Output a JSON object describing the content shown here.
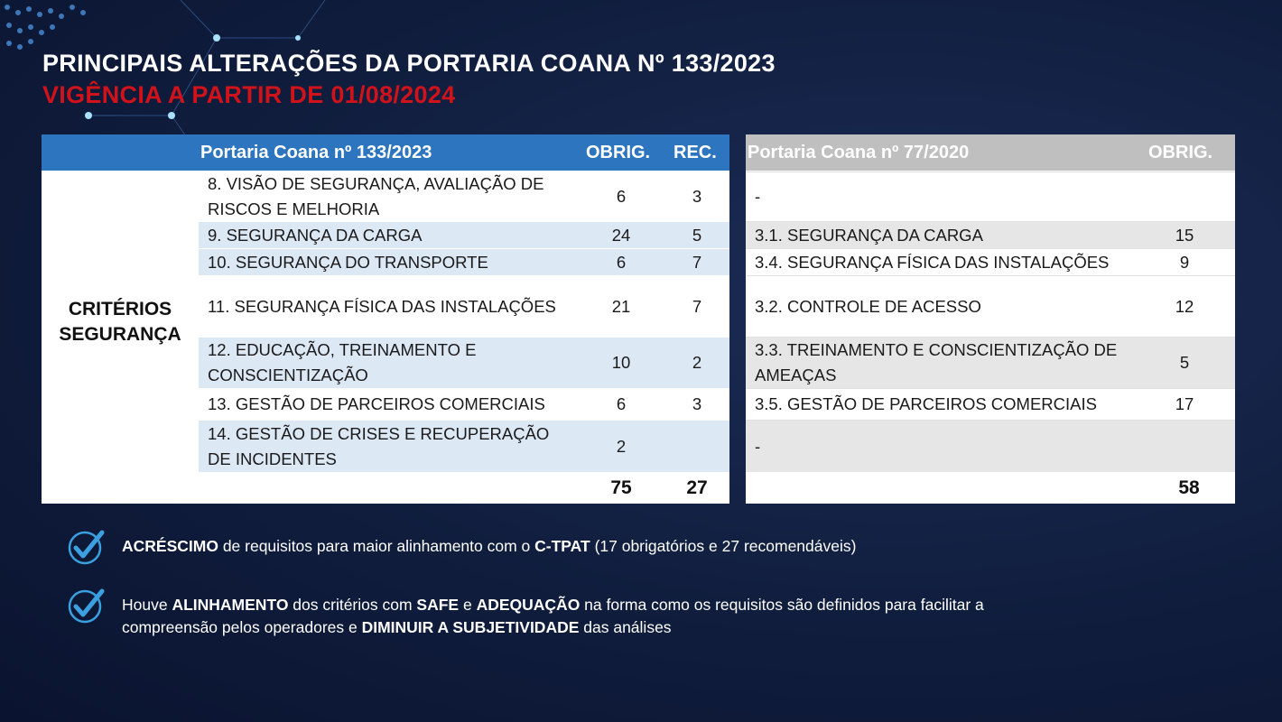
{
  "title": "PRINCIPAIS ALTERAÇÕES DA PORTARIA COANA Nº 133/2023",
  "subtitle": "VIGÊNCIA A PARTIR DE 01/08/2024",
  "colors": {
    "accent_blue": "#2e75c0",
    "header_gray": "#bfbfbf",
    "title_red": "#d0121b",
    "row_blue": "#dde8f5",
    "row_gray": "#e6e6e6"
  },
  "new_table": {
    "header": {
      "title": "Portaria Coana nº 133/2023",
      "col1": "OBRIG.",
      "col2": "REC."
    },
    "category": "CRITÉRIOS SEGURANÇA",
    "rows": [
      {
        "label": "8. VISÃO DE SEGURANÇA, AVALIAÇÃO DE RISCOS E MELHORIA",
        "obrig": "6",
        "rec": "3"
      },
      {
        "label": "9. SEGURANÇA DA CARGA",
        "obrig": "24",
        "rec": "5"
      },
      {
        "label": "10. SEGURANÇA DO TRANSPORTE",
        "obrig": "6",
        "rec": "7"
      },
      {
        "label": "11. SEGURANÇA FÍSICA DAS INSTALAÇÕES",
        "obrig": "21",
        "rec": "7"
      },
      {
        "label": "12. EDUCAÇÃO, TREINAMENTO E CONSCIENTIZAÇÃO",
        "obrig": "10",
        "rec": "2"
      },
      {
        "label": "13. GESTÃO DE PARCEIROS COMERCIAIS",
        "obrig": "6",
        "rec": "3"
      },
      {
        "label": "14. GESTÃO DE CRISES E RECUPERAÇÃO DE INCIDENTES",
        "obrig": "2",
        "rec": ""
      }
    ],
    "total_obrig": "75",
    "total_rec": "27"
  },
  "old_table": {
    "header": {
      "title": "Portaria Coana nº 77/2020",
      "col1": "OBRIG."
    },
    "rows": [
      {
        "label": "-",
        "obrig": ""
      },
      {
        "label": "3.1. SEGURANÇA DA CARGA",
        "obrig": "15"
      },
      {
        "label": "3.4. SEGURANÇA FÍSICA DAS INSTALAÇÕES",
        "obrig": "9"
      },
      {
        "label": "3.2. CONTROLE DE ACESSO",
        "obrig": "12"
      },
      {
        "label": "3.3. TREINAMENTO E CONSCIENTIZAÇÃO DE AMEAÇAS",
        "obrig": "5"
      },
      {
        "label": "3.5. GESTÃO DE PARCEIROS COMERCIAIS",
        "obrig": "17"
      },
      {
        "label": "-",
        "obrig": ""
      }
    ],
    "total_obrig": "58"
  },
  "bullets": [
    {
      "icon": "checkmark-icon",
      "parts": [
        {
          "t": "ACRÉSCIMO",
          "b": true
        },
        {
          "t": " de requisitos para maior alinhamento com o ",
          "b": false
        },
        {
          "t": "C-TPAT",
          "b": true
        },
        {
          "t": " (17 obrigatórios e 27 recomendáveis)",
          "b": false
        }
      ]
    },
    {
      "icon": "checkmark-icon",
      "parts": [
        {
          "t": "Houve ",
          "b": false
        },
        {
          "t": "ALINHAMENTO",
          "b": true
        },
        {
          "t": " dos critérios com ",
          "b": false
        },
        {
          "t": "SAFE",
          "b": true
        },
        {
          "t": " e ",
          "b": false
        },
        {
          "t": "ADEQUAÇÃO",
          "b": true
        },
        {
          "t": " na forma como os requisitos são definidos para facilitar a compreensão pelos operadores e ",
          "b": false
        },
        {
          "t": "DIMINUIR A SUBJETIVIDADE",
          "b": true
        },
        {
          "t": " das análises",
          "b": false
        }
      ]
    }
  ]
}
